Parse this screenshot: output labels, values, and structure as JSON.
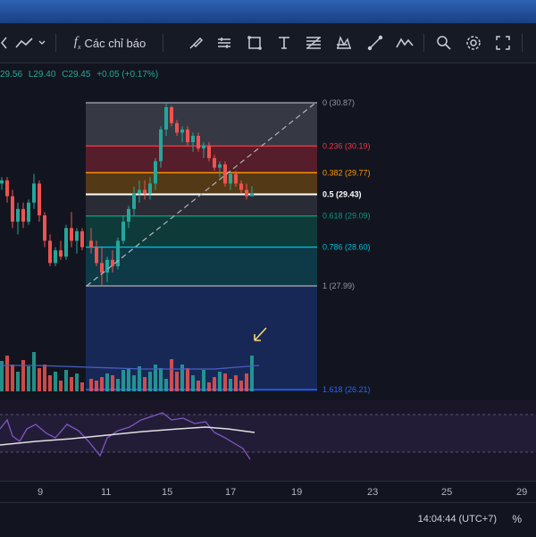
{
  "toolbar": {
    "indicators_label": "Các chỉ báo",
    "icons": [
      "undo-arrow-icon",
      "line-chart-icon",
      "indicators-icon",
      "brush-icon",
      "tools-icon",
      "rectangle-icon",
      "text-icon",
      "fib-icon",
      "pattern-icon",
      "cursor-icon",
      "wave-icon",
      "zoom-icon",
      "settings-icon",
      "fullscreen-icon"
    ]
  },
  "ohlc": {
    "h": "29.56",
    "l": "L29.40",
    "c": "C29.45",
    "change": "+0.05 (+0.17%)"
  },
  "fib_levels": [
    {
      "label": "0 (30.87)",
      "price": 30.87,
      "color": "#9598a1"
    },
    {
      "label": "0.236 (30.19)",
      "price": 30.19,
      "color": "#f23645"
    },
    {
      "label": "0.382 (29.77)",
      "price": 29.77,
      "color": "#ff9800"
    },
    {
      "label": "0.5 (29.43)",
      "price": 29.43,
      "color": "#ffffff"
    },
    {
      "label": "0.618 (29.09)",
      "price": 29.09,
      "color": "#089981"
    },
    {
      "label": "0.786 (28.60)",
      "price": 28.6,
      "color": "#00bcd4"
    },
    {
      "label": "1 (27.99)",
      "price": 27.99,
      "color": "#9598a1"
    },
    {
      "label": "1.618 (26.21)",
      "price": 26.21,
      "color": "#2962ff"
    }
  ],
  "time_axis": [
    "9",
    "11",
    "15",
    "17",
    "19",
    "23",
    "25",
    "29"
  ],
  "status": {
    "clock": "14:04:44 (UTC+7)",
    "percent": "%"
  },
  "colors": {
    "up": "#26a69a",
    "down": "#ef5350",
    "background": "#12151f",
    "accent": "#2962ff"
  }
}
